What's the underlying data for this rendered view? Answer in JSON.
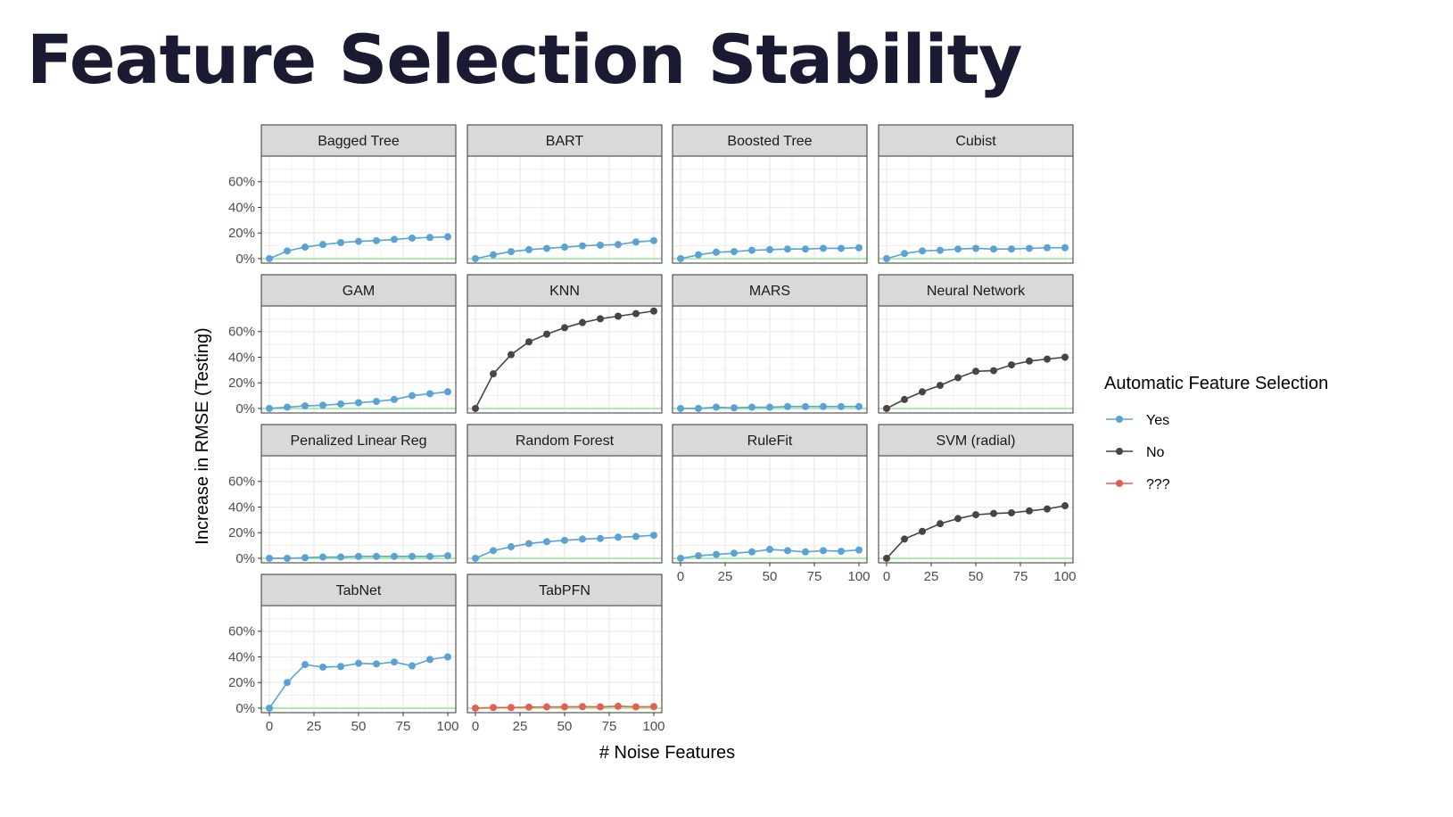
{
  "title": "Feature Selection Stability",
  "chart_data": {
    "type": "line",
    "facets": true,
    "xlabel": "# Noise Features",
    "ylabel": "Increase in RMSE (Testing)",
    "x": [
      0,
      10,
      20,
      30,
      40,
      50,
      60,
      70,
      80,
      90,
      100
    ],
    "xlim": [
      -4.5,
      104.5
    ],
    "ylim": [
      -3.5,
      80
    ],
    "x_ticks": [
      0,
      25,
      50,
      75,
      100
    ],
    "x_tick_labels": [
      "0",
      "25",
      "50",
      "75",
      "100"
    ],
    "y_ticks": [
      0,
      20,
      40,
      60
    ],
    "y_tick_labels": [
      "0%",
      "20%",
      "40%",
      "60%"
    ],
    "grid": true,
    "reference_line": {
      "y": 0,
      "color": "#90ee90"
    },
    "legend": {
      "title": "Automatic Feature Selection",
      "placement": "right",
      "entries": [
        {
          "label": "Yes",
          "color": "#5aa2d3"
        },
        {
          "label": "No",
          "color": "#4a4346"
        },
        {
          "label": "???",
          "color": "#e1604f"
        }
      ]
    },
    "panels": [
      {
        "name": "Bagged Tree",
        "group": "Yes",
        "values": [
          0,
          6,
          9,
          11,
          12.5,
          13.5,
          14,
          15,
          16,
          16.5,
          17
        ]
      },
      {
        "name": "BART",
        "group": "Yes",
        "values": [
          0,
          3,
          5.5,
          7,
          8,
          9,
          10,
          10.5,
          11,
          13,
          14
        ]
      },
      {
        "name": "Boosted Tree",
        "group": "Yes",
        "values": [
          0,
          3,
          5,
          5.5,
          6.5,
          7,
          7.5,
          7.5,
          8,
          8,
          8.5
        ]
      },
      {
        "name": "Cubist",
        "group": "Yes",
        "values": [
          0,
          4,
          6,
          6.5,
          7.5,
          8,
          7.5,
          7.5,
          8,
          8.5,
          8.5
        ]
      },
      {
        "name": "GAM",
        "group": "Yes",
        "values": [
          0,
          1,
          2,
          2.5,
          3.5,
          4.5,
          5.5,
          7,
          10,
          11.5,
          13
        ]
      },
      {
        "name": "KNN",
        "group": "No",
        "values": [
          0,
          27,
          42,
          52,
          58,
          63,
          67,
          70,
          72,
          74,
          76
        ]
      },
      {
        "name": "MARS",
        "group": "Yes",
        "values": [
          0,
          0,
          1,
          0.5,
          1,
          1,
          1.5,
          1.5,
          1.5,
          1.5,
          1.5
        ]
      },
      {
        "name": "Neural Network",
        "group": "No",
        "values": [
          0,
          7,
          13,
          18,
          24,
          29,
          29.5,
          34,
          37,
          38.5,
          40
        ]
      },
      {
        "name": "Penalized Linear Reg",
        "group": "Yes",
        "values": [
          0,
          0,
          0.5,
          1,
          1,
          1.5,
          1.5,
          1.5,
          1.5,
          1.5,
          2
        ]
      },
      {
        "name": "Random Forest",
        "group": "Yes",
        "values": [
          0,
          6,
          9,
          11.5,
          13,
          14,
          15,
          15.5,
          16.5,
          17,
          18
        ]
      },
      {
        "name": "RuleFit",
        "group": "Yes",
        "values": [
          0,
          2,
          3,
          4,
          5,
          7,
          6,
          5,
          6,
          5.5,
          6.5
        ]
      },
      {
        "name": "SVM (radial)",
        "group": "No",
        "values": [
          0,
          15,
          21,
          27,
          31,
          34,
          35,
          35.5,
          37,
          38.5,
          41
        ]
      },
      {
        "name": "TabNet",
        "group": "Yes",
        "values": [
          0,
          20,
          34,
          32,
          32.5,
          35,
          34.5,
          36,
          33,
          38,
          40
        ]
      },
      {
        "name": "TabPFN",
        "group": "???",
        "values": [
          0,
          0.5,
          0.5,
          0.8,
          1,
          1,
          1.2,
          1,
          1.5,
          1,
          1.2
        ]
      }
    ]
  }
}
